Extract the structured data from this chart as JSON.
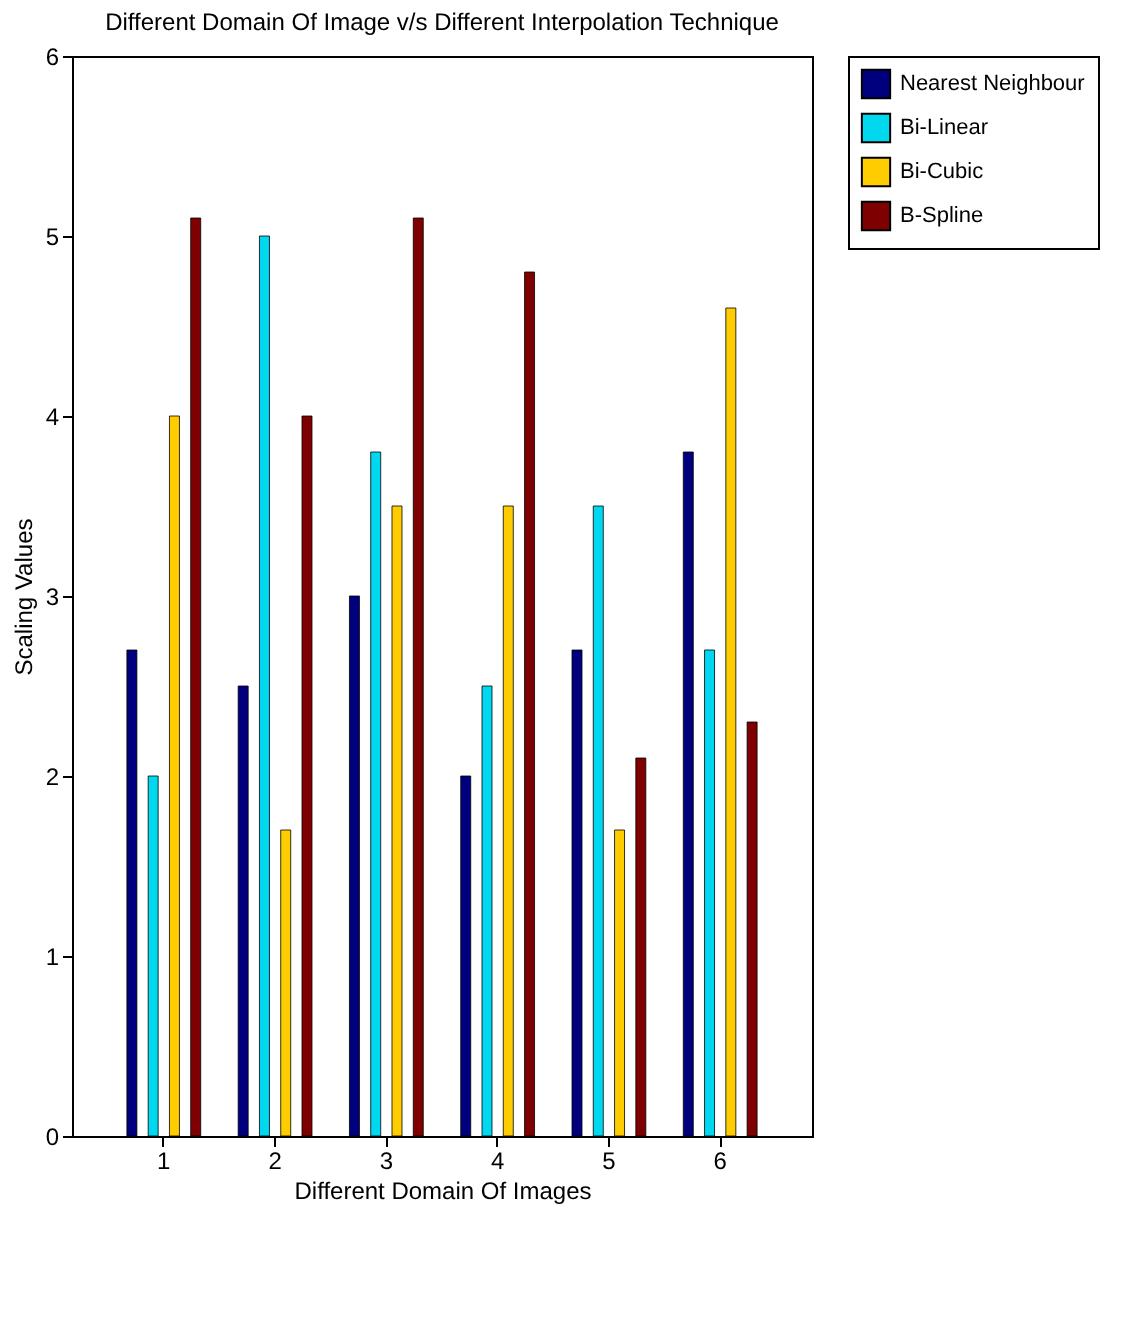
{
  "chart_data": {
    "type": "bar",
    "title": "Different Domain Of Image v/s Different Interpolation Technique",
    "xlabel": "Different Domain Of Images",
    "ylabel": "Scaling Values",
    "categories": [
      "1",
      "2",
      "3",
      "4",
      "5",
      "6"
    ],
    "series": [
      {
        "name": "Nearest Neighbour",
        "color": "#00007f",
        "values": [
          2.7,
          2.5,
          3.0,
          2.0,
          2.7,
          3.8
        ]
      },
      {
        "name": "Bi-Linear",
        "color": "#00d8f0",
        "values": [
          2.0,
          5.0,
          3.8,
          2.5,
          3.5,
          2.7
        ]
      },
      {
        "name": "Bi-Cubic",
        "color": "#ffcc00",
        "values": [
          4.0,
          1.7,
          3.5,
          3.5,
          1.7,
          4.6
        ]
      },
      {
        "name": "B-Spline",
        "color": "#7f0000",
        "values": [
          5.1,
          4.0,
          5.1,
          4.8,
          2.1,
          2.3
        ]
      }
    ],
    "ylim": [
      0,
      6
    ],
    "yticks": [
      0,
      1,
      2,
      3,
      4,
      5,
      6
    ],
    "grid": false,
    "legend": "right"
  }
}
